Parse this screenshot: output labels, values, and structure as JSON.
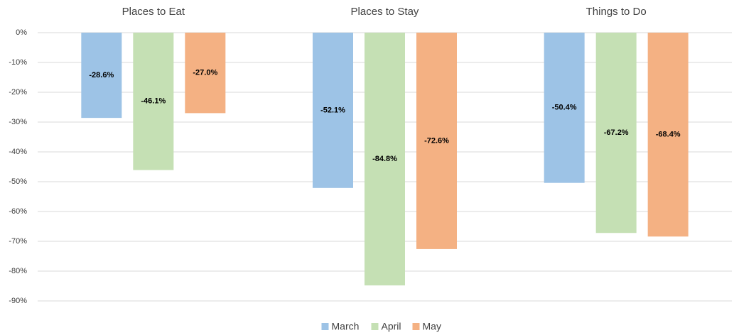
{
  "chart_data": {
    "type": "bar",
    "categories": [
      "Places to Eat",
      "Places to Stay",
      "Things to Do"
    ],
    "series": [
      {
        "name": "March",
        "color": "#9dc3e6",
        "values": [
          -28.6,
          -52.1,
          -50.4
        ],
        "value_labels": [
          "-28.6%",
          "-52.1%",
          "-50.4%"
        ]
      },
      {
        "name": "April",
        "color": "#c5e0b4",
        "values": [
          -46.1,
          -84.8,
          -67.2
        ],
        "value_labels": [
          "-46.1%",
          "-84.8%",
          "-67.2%"
        ]
      },
      {
        "name": "May",
        "color": "#f4b183",
        "values": [
          -27.0,
          -72.6,
          -68.4
        ],
        "value_labels": [
          "-27.0%",
          "-72.6%",
          "-68.4%"
        ]
      }
    ],
    "ylim": [
      -90,
      0
    ],
    "yticks": [
      {
        "value": 0,
        "label": "0%"
      },
      {
        "value": -10,
        "label": "-10%"
      },
      {
        "value": -20,
        "label": "-20%"
      },
      {
        "value": -30,
        "label": "-30%"
      },
      {
        "value": -40,
        "label": "-40%"
      },
      {
        "value": -50,
        "label": "-50%"
      },
      {
        "value": -60,
        "label": "-60%"
      },
      {
        "value": -70,
        "label": "-70%"
      },
      {
        "value": -80,
        "label": "-80%"
      },
      {
        "value": -90,
        "label": "-90%"
      }
    ],
    "grid": true,
    "legend": "bottom"
  }
}
